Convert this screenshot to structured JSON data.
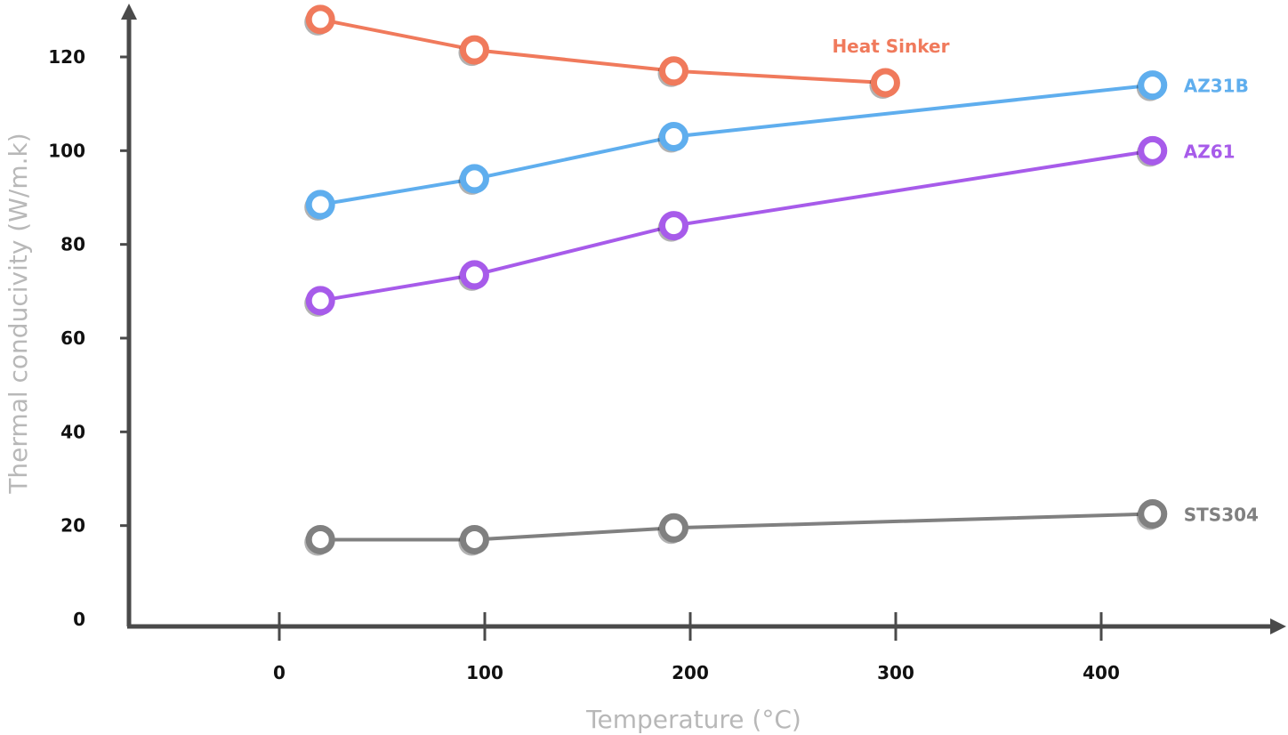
{
  "chart_data": {
    "type": "line",
    "xlabel": "Temperature (°C)",
    "ylabel": "Thermal conducivity (W/m.k)",
    "xlim": [
      -75,
      485
    ],
    "ylim": [
      0,
      130
    ],
    "x_ticks": [
      "0",
      "100",
      "200",
      "300",
      "400"
    ],
    "y_ticks": [
      "0",
      "20",
      "40",
      "60",
      "80",
      "100",
      "120"
    ],
    "grid": false,
    "legend": "inline labels at line ends",
    "series": [
      {
        "name": "Heat Sinker",
        "color": "#F07A5C",
        "x": [
          20,
          95,
          192,
          295
        ],
        "y": [
          128,
          121.5,
          117,
          114.5
        ]
      },
      {
        "name": "AZ31B",
        "color": "#5FAEEE",
        "x": [
          20,
          95,
          192,
          425
        ],
        "y": [
          88.5,
          94,
          103,
          114
        ]
      },
      {
        "name": "AZ61",
        "color": "#A75BEA",
        "x": [
          20,
          95,
          192,
          425
        ],
        "y": [
          68,
          73.5,
          84,
          100
        ]
      },
      {
        "name": "STS304",
        "color": "#808080",
        "x": [
          20,
          95,
          192,
          425
        ],
        "y": [
          17,
          17,
          19.5,
          22.5
        ]
      }
    ]
  }
}
